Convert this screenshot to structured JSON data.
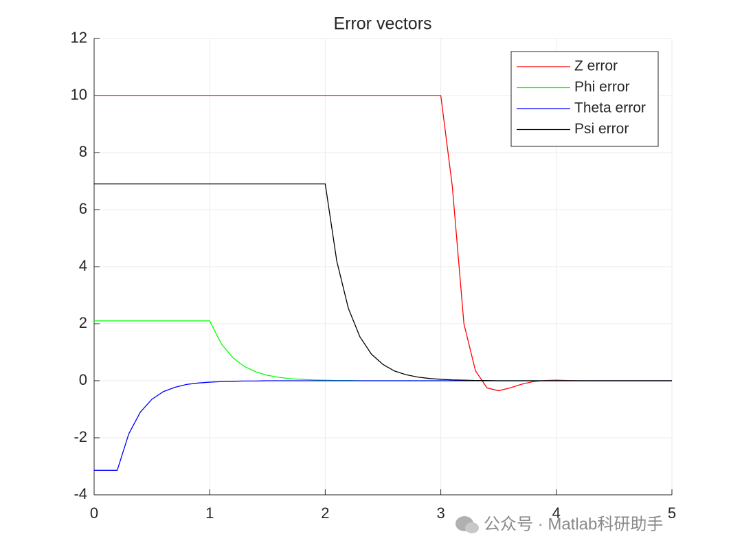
{
  "chart_data": {
    "type": "line",
    "title": "Error vectors",
    "x": [
      0,
      0.1,
      0.2,
      0.3,
      0.4,
      0.5,
      0.6,
      0.7,
      0.8,
      0.9,
      1,
      1.1,
      1.2,
      1.3,
      1.4,
      1.5,
      1.6,
      1.7,
      1.8,
      1.9,
      2,
      2.1,
      2.2,
      2.3,
      2.4,
      2.5,
      2.6,
      2.7,
      2.8,
      2.9,
      3,
      3.1,
      3.2,
      3.3,
      3.4,
      3.5,
      3.6,
      3.7,
      3.8,
      3.9,
      4,
      4.1,
      4.2,
      4.3,
      4.4,
      4.5,
      4.6,
      4.7,
      4.8,
      4.9,
      5
    ],
    "series": [
      {
        "name": "Z error",
        "color": "#ff0000",
        "values": [
          10,
          10,
          10,
          10,
          10,
          10,
          10,
          10,
          10,
          10,
          10,
          10,
          10,
          10,
          10,
          10,
          10,
          10,
          10,
          10,
          10,
          10,
          10,
          10,
          10,
          10,
          10,
          10,
          10,
          10,
          10,
          6.8,
          2,
          0.35,
          -0.25,
          -0.35,
          -0.25,
          -0.12,
          -0.03,
          0.01,
          0.02,
          0.01,
          0,
          0,
          0,
          0,
          0,
          0,
          0,
          0,
          0
        ]
      },
      {
        "name": "Phi error",
        "color": "#00ff00",
        "values": [
          2.1,
          2.1,
          2.1,
          2.1,
          2.1,
          2.1,
          2.1,
          2.1,
          2.1,
          2.1,
          2.1,
          1.3,
          0.81,
          0.5,
          0.31,
          0.19,
          0.12,
          0.07,
          0.05,
          0.03,
          0.02,
          0.01,
          0.01,
          0,
          0,
          0,
          0,
          0,
          0,
          0,
          0,
          0,
          0,
          0,
          0,
          0,
          0,
          0,
          0,
          0,
          0,
          0,
          0,
          0,
          0,
          0,
          0,
          0,
          0,
          0,
          0
        ]
      },
      {
        "name": "Theta error",
        "color": "#0000ff",
        "values": [
          -3.14,
          -3.14,
          -3.14,
          -1.86,
          -1.1,
          -0.65,
          -0.38,
          -0.23,
          -0.13,
          -0.08,
          -0.05,
          -0.03,
          -0.02,
          -0.01,
          -0.01,
          0,
          0,
          0,
          0,
          0,
          0,
          0,
          0,
          0,
          0,
          0,
          0,
          0,
          0,
          0,
          0,
          0,
          0,
          0,
          0,
          0,
          0,
          0,
          0,
          0,
          0,
          0,
          0,
          0,
          0,
          0,
          0,
          0,
          0,
          0,
          0
        ]
      },
      {
        "name": "Psi error",
        "color": "#000000",
        "values": [
          6.9,
          6.9,
          6.9,
          6.9,
          6.9,
          6.9,
          6.9,
          6.9,
          6.9,
          6.9,
          6.9,
          6.9,
          6.9,
          6.9,
          6.9,
          6.9,
          6.9,
          6.9,
          6.9,
          6.9,
          6.9,
          4.19,
          2.54,
          1.54,
          0.93,
          0.57,
          0.34,
          0.21,
          0.13,
          0.08,
          0.05,
          0.03,
          0.02,
          0.01,
          0.01,
          0,
          0,
          0,
          0,
          0,
          0,
          0,
          0,
          0,
          0,
          0,
          0,
          0,
          0,
          0,
          0
        ]
      }
    ],
    "xlim": [
      0,
      5
    ],
    "xticks": [
      0,
      1,
      2,
      3,
      4,
      5
    ],
    "ylim": [
      -4,
      12
    ],
    "yticks": [
      -4,
      -2,
      0,
      2,
      4,
      6,
      8,
      10,
      12
    ],
    "grid": true,
    "legend": "top-right",
    "watermark": "公众号 · Matlab科研助手"
  }
}
